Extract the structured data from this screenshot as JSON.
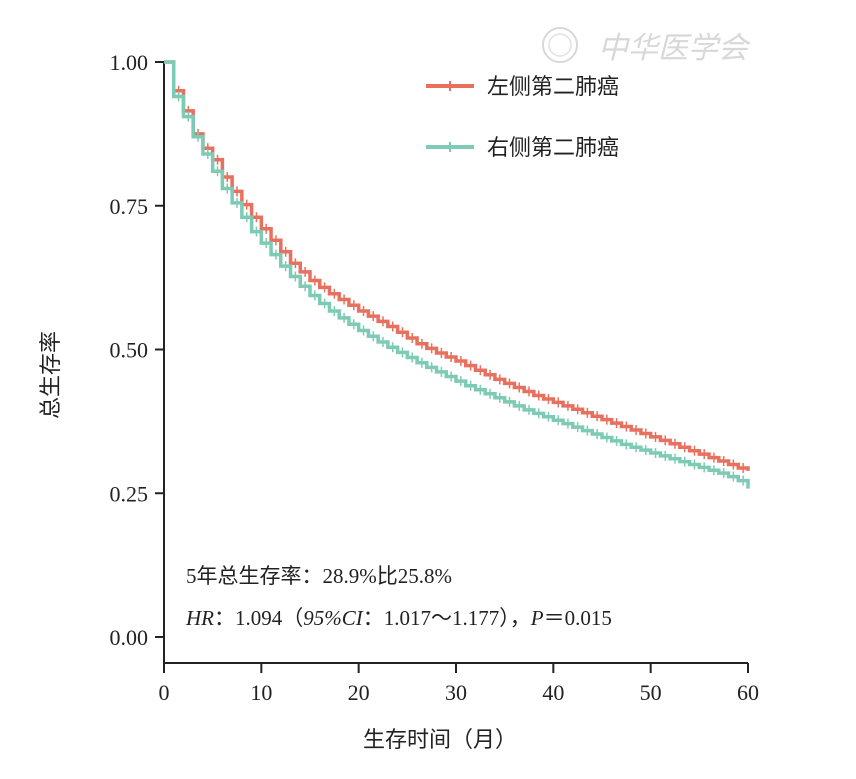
{
  "chart_data": {
    "type": "line",
    "subtype": "kaplan-meier-step",
    "xlabel": "生存时间（月）",
    "ylabel": "总生存率",
    "xlim": [
      0,
      60
    ],
    "ylim": [
      0,
      1
    ],
    "x_ticks": [
      "0",
      "10",
      "20",
      "30",
      "40",
      "50",
      "60"
    ],
    "y_ticks": [
      "0.00",
      "0.25",
      "0.50",
      "0.75",
      "1.00"
    ],
    "grid": false,
    "legend_position": "top-right",
    "series": [
      {
        "name": "左侧第二肺癌",
        "color": "#e8705e",
        "x": [
          0,
          1,
          2,
          3,
          4,
          5,
          6,
          7,
          8,
          9,
          10,
          11,
          12,
          13,
          14,
          15,
          16,
          17,
          18,
          19,
          20,
          21,
          22,
          23,
          24,
          25,
          26,
          27,
          28,
          29,
          30,
          31,
          32,
          33,
          34,
          35,
          36,
          37,
          38,
          39,
          40,
          41,
          42,
          43,
          44,
          45,
          46,
          47,
          48,
          49,
          50,
          51,
          52,
          53,
          54,
          55,
          56,
          57,
          58,
          59,
          60
        ],
        "y": [
          1.0,
          0.95,
          0.915,
          0.875,
          0.85,
          0.83,
          0.8,
          0.775,
          0.752,
          0.73,
          0.71,
          0.69,
          0.67,
          0.65,
          0.635,
          0.62,
          0.608,
          0.597,
          0.587,
          0.577,
          0.567,
          0.558,
          0.549,
          0.54,
          0.53,
          0.52,
          0.51,
          0.502,
          0.494,
          0.487,
          0.48,
          0.472,
          0.464,
          0.456,
          0.448,
          0.441,
          0.434,
          0.427,
          0.42,
          0.414,
          0.408,
          0.402,
          0.396,
          0.39,
          0.384,
          0.378,
          0.372,
          0.366,
          0.36,
          0.354,
          0.348,
          0.342,
          0.336,
          0.33,
          0.324,
          0.318,
          0.312,
          0.306,
          0.3,
          0.294,
          0.289
        ]
      },
      {
        "name": "右侧第二肺癌",
        "color": "#7dcbb5",
        "x": [
          0,
          1,
          2,
          3,
          4,
          5,
          6,
          7,
          8,
          9,
          10,
          11,
          12,
          13,
          14,
          15,
          16,
          17,
          18,
          19,
          20,
          21,
          22,
          23,
          24,
          25,
          26,
          27,
          28,
          29,
          30,
          31,
          32,
          33,
          34,
          35,
          36,
          37,
          38,
          39,
          40,
          41,
          42,
          43,
          44,
          45,
          46,
          47,
          48,
          49,
          50,
          51,
          52,
          53,
          54,
          55,
          56,
          57,
          58,
          59,
          60
        ],
        "y": [
          1.0,
          0.94,
          0.905,
          0.87,
          0.84,
          0.81,
          0.78,
          0.755,
          0.73,
          0.705,
          0.685,
          0.665,
          0.645,
          0.627,
          0.61,
          0.594,
          0.58,
          0.567,
          0.555,
          0.544,
          0.533,
          0.523,
          0.513,
          0.504,
          0.495,
          0.486,
          0.477,
          0.469,
          0.461,
          0.453,
          0.445,
          0.437,
          0.43,
          0.423,
          0.416,
          0.409,
          0.402,
          0.395,
          0.389,
          0.383,
          0.377,
          0.371,
          0.365,
          0.359,
          0.353,
          0.347,
          0.341,
          0.335,
          0.33,
          0.325,
          0.32,
          0.315,
          0.31,
          0.305,
          0.3,
          0.295,
          0.29,
          0.285,
          0.279,
          0.272,
          0.258
        ]
      }
    ],
    "annotations": {
      "line1": "5年总生存率：28.9%比25.8%",
      "line2_hr": "HR",
      "line2_a": "：1.094（",
      "line2_ci": "95%CI",
      "line2_b": "：1.017～1.177），",
      "line2_p": "P",
      "line2_c": "＝0.015"
    }
  },
  "watermark": {
    "text": "中华医学会"
  }
}
